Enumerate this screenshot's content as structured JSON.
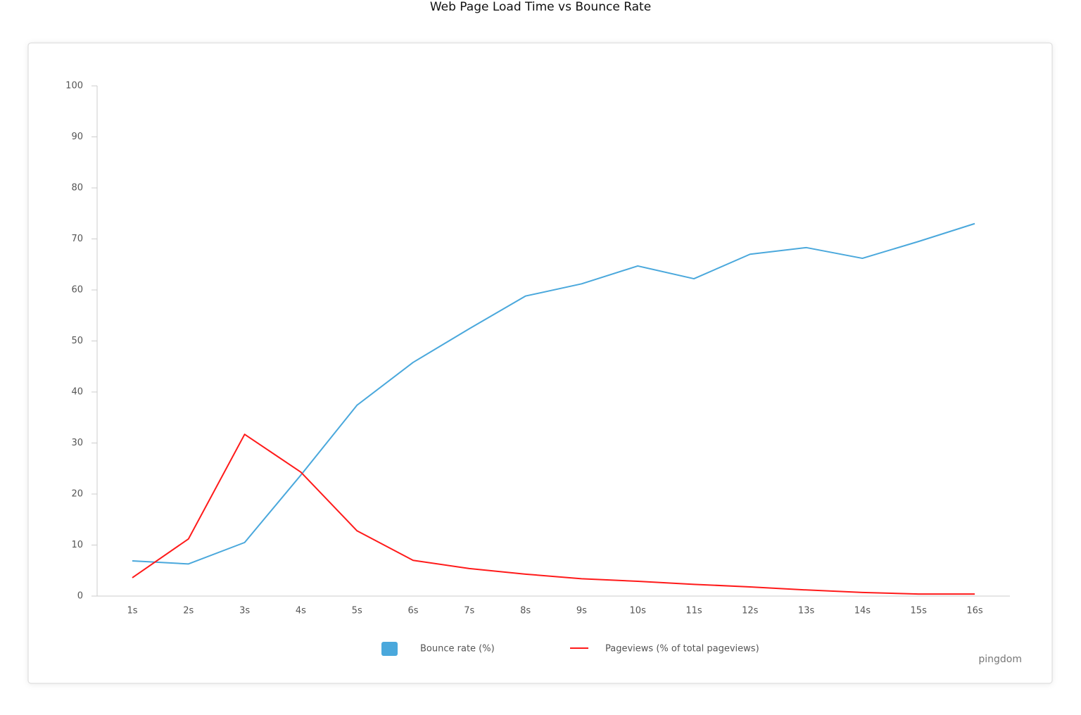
{
  "chart_data": {
    "type": "line",
    "title": "Web Page Load Time vs Bounce Rate",
    "categories": [
      "1s",
      "2s",
      "3s",
      "4s",
      "5s",
      "6s",
      "7s",
      "8s",
      "9s",
      "10s",
      "11s",
      "12s",
      "13s",
      "14s",
      "15s",
      "16s"
    ],
    "series": [
      {
        "name": "Bounce rate  (%)",
        "color": "#4aa8dc",
        "legend_marker": "square",
        "values": [
          6.9,
          6.3,
          10.5,
          23.7,
          37.4,
          45.8,
          52.4,
          58.8,
          61.2,
          64.7,
          62.2,
          67.0,
          68.3,
          66.2,
          69.5,
          73.0
        ]
      },
      {
        "name": "Pageviews (% of total pageviews)",
        "color": "#ff1a1a",
        "legend_marker": "line",
        "values": [
          3.6,
          11.2,
          31.7,
          24.3,
          12.8,
          7.0,
          5.4,
          4.3,
          3.4,
          2.9,
          2.3,
          1.8,
          1.2,
          0.7,
          0.4,
          0.4
        ]
      }
    ],
    "ylim": [
      0,
      100
    ],
    "yticks": [
      0,
      10,
      20,
      30,
      40,
      50,
      60,
      70,
      80,
      90,
      100
    ],
    "grid": false,
    "watermark": "pingdom"
  }
}
